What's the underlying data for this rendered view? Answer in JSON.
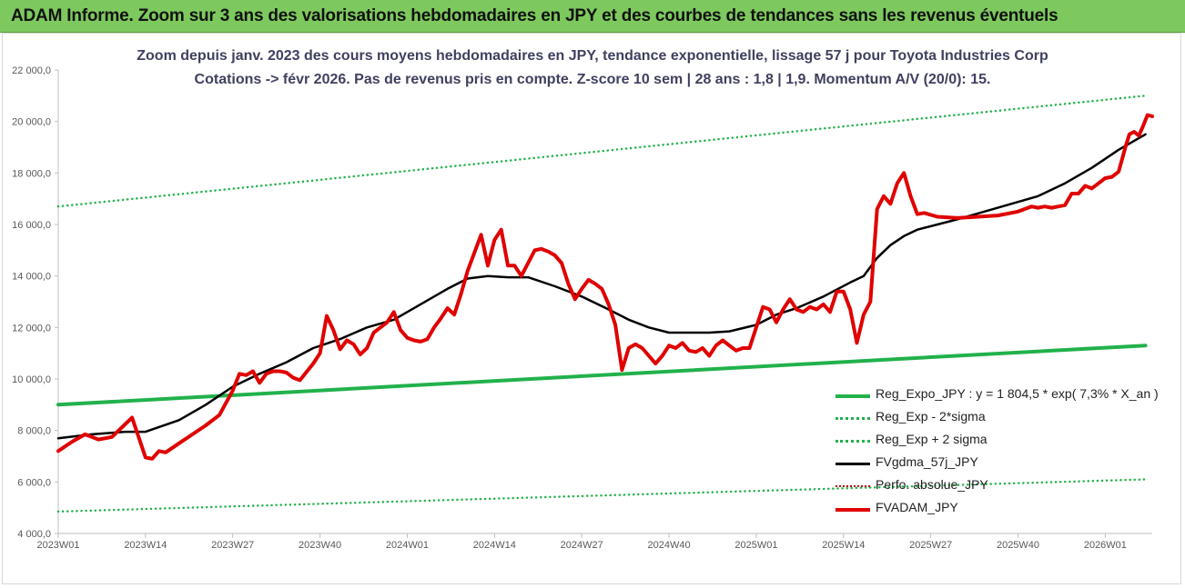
{
  "banner": {
    "title": "ADAM Informe. Zoom sur 3 ans des valorisations hebdomadaires en JPY et des courbes de tendances sans les revenus éventuels"
  },
  "chart_data": {
    "type": "line",
    "title_line1": "Zoom depuis janv. 2023 des cours moyens hebdomadaires en JPY, tendance exponentielle, lissage 57 j pour Toyota Industries Corp",
    "title_line2": "Cotations -> févr 2026. Pas de revenus pris en compte. Z-score 10 sem | 28 ans : 1,8 | 1,9. Momentum A/V (20/0): 15.",
    "xlabel": "",
    "ylabel": "",
    "ylim": [
      4000,
      22000
    ],
    "y_ticks": [
      "4 000,0",
      "6 000,0",
      "8 000,0",
      "10 000,0",
      "12 000,0",
      "14 000,0",
      "16 000,0",
      "18 000,0",
      "20 000,0",
      "22 000,0"
    ],
    "x_ticks": [
      "2023W01",
      "2023W14",
      "2023W27",
      "2023W40",
      "2024W01",
      "2024W14",
      "2024W27",
      "2024W40",
      "2025W01",
      "2025W14",
      "2025W27",
      "2025W40",
      "2026W01"
    ],
    "week_count": 163,
    "series": [
      {
        "name": "Reg_Expo_JPY : y = 1 804,5 * exp( 7,3% *  X_an )",
        "color": "#22b14c",
        "style": "solid-thick",
        "points": [
          [
            0,
            9000
          ],
          [
            162,
            11300
          ]
        ]
      },
      {
        "name": "Reg_Exp - 2*sigma",
        "color": "#22b14c",
        "style": "dotted",
        "points": [
          [
            0,
            4850
          ],
          [
            162,
            6100
          ]
        ]
      },
      {
        "name": "Reg_Exp + 2 sigma",
        "color": "#22b14c",
        "style": "dotted",
        "points": [
          [
            0,
            16700
          ],
          [
            162,
            21000
          ]
        ]
      },
      {
        "name": "FVgdma_57j_JPY",
        "color": "#000000",
        "style": "solid",
        "points": [
          [
            0,
            7700
          ],
          [
            5,
            7850
          ],
          [
            10,
            7950
          ],
          [
            13,
            7950
          ],
          [
            18,
            8400
          ],
          [
            22,
            9000
          ],
          [
            26,
            9700
          ],
          [
            30,
            10200
          ],
          [
            34,
            10650
          ],
          [
            38,
            11200
          ],
          [
            42,
            11550
          ],
          [
            46,
            12000
          ],
          [
            50,
            12300
          ],
          [
            54,
            12900
          ],
          [
            58,
            13500
          ],
          [
            61,
            13900
          ],
          [
            64,
            14000
          ],
          [
            67,
            13950
          ],
          [
            70,
            13950
          ],
          [
            74,
            13600
          ],
          [
            78,
            13200
          ],
          [
            82,
            12700
          ],
          [
            85,
            12300
          ],
          [
            88,
            12000
          ],
          [
            91,
            11800
          ],
          [
            94,
            11800
          ],
          [
            97,
            11800
          ],
          [
            100,
            11850
          ],
          [
            104,
            12100
          ],
          [
            107,
            12500
          ],
          [
            110,
            12750
          ],
          [
            114,
            13200
          ],
          [
            118,
            13750
          ],
          [
            120,
            14000
          ],
          [
            122,
            14700
          ],
          [
            124,
            15200
          ],
          [
            126,
            15550
          ],
          [
            128,
            15800
          ],
          [
            131,
            16000
          ],
          [
            134,
            16200
          ],
          [
            138,
            16500
          ],
          [
            142,
            16800
          ],
          [
            146,
            17100
          ],
          [
            150,
            17600
          ],
          [
            154,
            18200
          ],
          [
            158,
            18900
          ],
          [
            162,
            19500
          ]
        ]
      },
      {
        "name": "Perfo. absolue_JPY",
        "color": "#c00000",
        "style": "dotted-thin",
        "points": []
      },
      {
        "name": "FVADAM_JPY",
        "color": "#e00000",
        "style": "solid-thick",
        "points": [
          [
            0,
            7200
          ],
          [
            2,
            7550
          ],
          [
            4,
            7850
          ],
          [
            6,
            7650
          ],
          [
            8,
            7750
          ],
          [
            11,
            8500
          ],
          [
            13,
            6950
          ],
          [
            14,
            6900
          ],
          [
            15,
            7200
          ],
          [
            16,
            7150
          ],
          [
            18,
            7500
          ],
          [
            20,
            7850
          ],
          [
            22,
            8200
          ],
          [
            24,
            8600
          ],
          [
            26,
            9550
          ],
          [
            27,
            10200
          ],
          [
            28,
            10150
          ],
          [
            29,
            10300
          ],
          [
            30,
            9850
          ],
          [
            31,
            10200
          ],
          [
            32,
            10300
          ],
          [
            33,
            10300
          ],
          [
            34,
            10250
          ],
          [
            35,
            10050
          ],
          [
            36,
            9950
          ],
          [
            38,
            10600
          ],
          [
            39,
            11000
          ],
          [
            40,
            12450
          ],
          [
            41,
            11900
          ],
          [
            42,
            11150
          ],
          [
            43,
            11500
          ],
          [
            44,
            11350
          ],
          [
            45,
            10950
          ],
          [
            46,
            11200
          ],
          [
            47,
            11800
          ],
          [
            48,
            12000
          ],
          [
            49,
            12200
          ],
          [
            50,
            12600
          ],
          [
            51,
            11900
          ],
          [
            52,
            11600
          ],
          [
            53,
            11500
          ],
          [
            54,
            11450
          ],
          [
            55,
            11550
          ],
          [
            56,
            12000
          ],
          [
            57,
            12350
          ],
          [
            58,
            12750
          ],
          [
            59,
            12500
          ],
          [
            60,
            13300
          ],
          [
            61,
            14200
          ],
          [
            62,
            14900
          ],
          [
            63,
            15600
          ],
          [
            64,
            14400
          ],
          [
            65,
            15400
          ],
          [
            66,
            15800
          ],
          [
            67,
            14400
          ],
          [
            68,
            14400
          ],
          [
            69,
            14000
          ],
          [
            70,
            14500
          ],
          [
            71,
            15000
          ],
          [
            72,
            15050
          ],
          [
            73,
            14950
          ],
          [
            74,
            14800
          ],
          [
            75,
            14500
          ],
          [
            76,
            13700
          ],
          [
            77,
            13100
          ],
          [
            78,
            13500
          ],
          [
            79,
            13850
          ],
          [
            80,
            13700
          ],
          [
            81,
            13500
          ],
          [
            82,
            12900
          ],
          [
            83,
            12100
          ],
          [
            84,
            10350
          ],
          [
            85,
            11200
          ],
          [
            86,
            11350
          ],
          [
            87,
            11200
          ],
          [
            88,
            10900
          ],
          [
            89,
            10600
          ],
          [
            90,
            10900
          ],
          [
            91,
            11300
          ],
          [
            92,
            11200
          ],
          [
            93,
            11400
          ],
          [
            94,
            11100
          ],
          [
            95,
            11050
          ],
          [
            96,
            11200
          ],
          [
            97,
            10900
          ],
          [
            98,
            11300
          ],
          [
            99,
            11500
          ],
          [
            100,
            11300
          ],
          [
            101,
            11100
          ],
          [
            102,
            11200
          ],
          [
            103,
            11200
          ],
          [
            104,
            12000
          ],
          [
            105,
            12800
          ],
          [
            106,
            12700
          ],
          [
            107,
            12200
          ],
          [
            108,
            12700
          ],
          [
            109,
            13100
          ],
          [
            110,
            12700
          ],
          [
            111,
            12600
          ],
          [
            112,
            12800
          ],
          [
            113,
            12700
          ],
          [
            114,
            12900
          ],
          [
            115,
            12600
          ],
          [
            116,
            13400
          ],
          [
            117,
            13400
          ],
          [
            118,
            12700
          ],
          [
            119,
            11400
          ],
          [
            120,
            12500
          ],
          [
            121,
            13000
          ],
          [
            122,
            16600
          ],
          [
            123,
            17100
          ],
          [
            124,
            16800
          ],
          [
            125,
            17600
          ],
          [
            126,
            18000
          ],
          [
            127,
            17100
          ],
          [
            128,
            16400
          ],
          [
            129,
            16450
          ],
          [
            131,
            16300
          ],
          [
            134,
            16250
          ],
          [
            137,
            16300
          ],
          [
            140,
            16350
          ],
          [
            143,
            16500
          ],
          [
            145,
            16700
          ],
          [
            146,
            16650
          ],
          [
            147,
            16700
          ],
          [
            148,
            16650
          ],
          [
            149,
            16700
          ],
          [
            150,
            16750
          ],
          [
            151,
            17200
          ],
          [
            152,
            17200
          ],
          [
            153,
            17500
          ],
          [
            154,
            17400
          ],
          [
            155,
            17600
          ],
          [
            156,
            17800
          ],
          [
            157,
            17850
          ],
          [
            158,
            18050
          ],
          [
            159,
            19000
          ],
          [
            159.6,
            19500
          ],
          [
            160.3,
            19600
          ],
          [
            161,
            19450
          ],
          [
            161.6,
            19800
          ],
          [
            162.3,
            20250
          ],
          [
            163,
            20200
          ]
        ]
      }
    ]
  }
}
